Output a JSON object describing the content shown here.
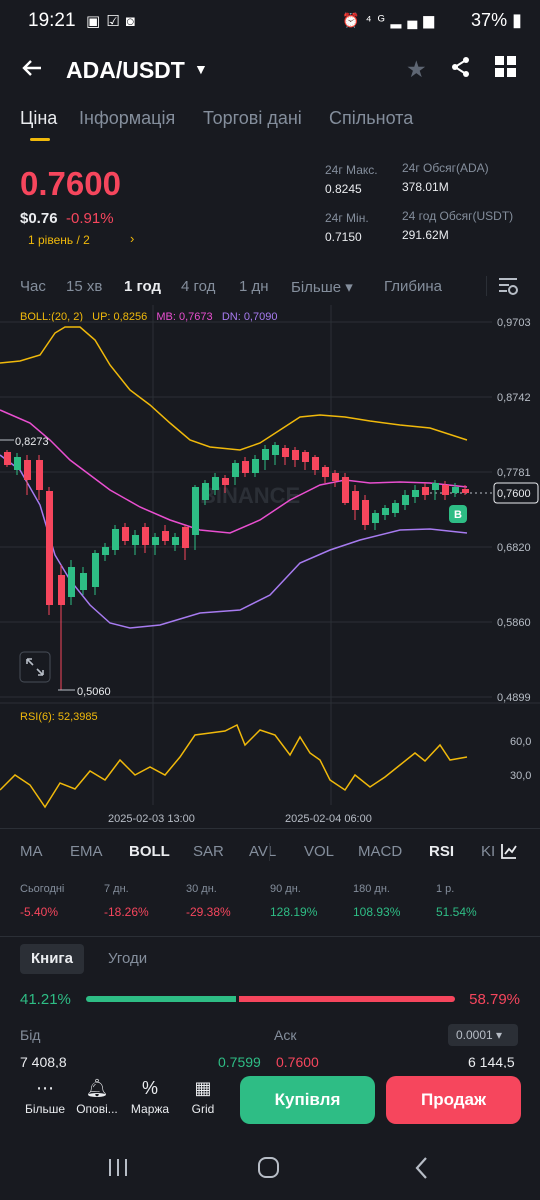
{
  "status_bar": {
    "time": "19:21",
    "left_icons": [
      "image-icon",
      "check-icon",
      "media-icon"
    ],
    "right_icons": [
      "alarm-icon",
      "4g-icon",
      "signal-icon",
      "signal-icon"
    ],
    "battery": "37%"
  },
  "header": {
    "pair": "ADA/USDT",
    "caret": "▼",
    "icons": [
      "back-arrow-icon",
      "star-icon",
      "share-icon",
      "grid-icon"
    ]
  },
  "tabs": [
    "Ціна",
    "Інформація",
    "Торгові дані",
    "Спільнота"
  ],
  "active_tab": "Ціна",
  "price": {
    "last": "0.7600",
    "usd": "$0.76",
    "change": "-0.91%",
    "level": "1 рівень / 2",
    "level_arrow": "›"
  },
  "stats": {
    "high_label": "24г Макс.",
    "high": "0.8245",
    "low_label": "24г Мін.",
    "low": "0.7150",
    "vol_base_label": "24г Обсяг(ADA)",
    "vol_base": "378.01M",
    "vol_quote_label": "24 год Обсяг(USDT)",
    "vol_quote": "291.62M"
  },
  "intervals": [
    "Час",
    "15 хв",
    "1 год",
    "4 год",
    "1 дн",
    "Більше ▾",
    "Глибина"
  ],
  "active_interval": "1 год",
  "boll": {
    "label": "BOLL:(20, 2)",
    "up": "UP: 0,8256",
    "mb": "MB: 0,7673",
    "dn": "DN: 0,7090"
  },
  "chart_data": {
    "type": "candlestick",
    "y_axis_ticks": [
      "0,9703",
      "0,8742",
      "0,7781",
      "0,6820",
      "0,5860",
      "0,4899"
    ],
    "marker_high": "0,8273",
    "marker_low": "0,5060",
    "current_price_tag": "0,7600",
    "watermark": "BINANCE",
    "trade_marker": "B",
    "x_axis_labels": [
      "2025-02-03 13:00",
      "2025-02-04 06:00"
    ],
    "rsi_label": "RSI(6): 52,3985",
    "rsi_ticks": [
      "60,0",
      "30,0"
    ]
  },
  "indicators": [
    "MA",
    "EMA",
    "BOLL",
    "SAR",
    "AVL",
    "VOL",
    "MACD",
    "RSI",
    "KI"
  ],
  "active_indicators": [
    "BOLL",
    "RSI"
  ],
  "performance": [
    {
      "label": "Сьогодні",
      "value": "-5.40%",
      "dir": "down"
    },
    {
      "label": "7 дн.",
      "value": "-18.26%",
      "dir": "down"
    },
    {
      "label": "30 дн.",
      "value": "-29.38%",
      "dir": "down"
    },
    {
      "label": "90 дн.",
      "value": "128.19%",
      "dir": "up"
    },
    {
      "label": "180 дн.",
      "value": "108.93%",
      "dir": "up"
    },
    {
      "label": "1 р.",
      "value": "51.54%",
      "dir": "up"
    }
  ],
  "book": {
    "book_tab": "Книга",
    "trades_tab": "Угоди",
    "bid_pct": "41.21%",
    "ask_pct": "58.79%",
    "bid_label": "Бід",
    "ask_label": "Аск",
    "precision": "0.0001 ▾",
    "row": {
      "bid_qty": "7 408,8",
      "bid_price": "0.7599",
      "ask_price": "0.7600",
      "ask_qty": "6 144,5"
    }
  },
  "bottom": {
    "items": [
      {
        "label": "Більше",
        "icon": "more-icon"
      },
      {
        "label": "Опові...",
        "icon": "bell-icon"
      },
      {
        "label": "Маржа",
        "icon": "percent-icon"
      },
      {
        "label": "Grid",
        "icon": "grid-bot-icon"
      }
    ],
    "buy": "Купівля",
    "sell": "Продаж"
  },
  "colors": {
    "up": "#2ebd85",
    "down": "#f6465d",
    "accent": "#f0b90b",
    "bg": "#181a20"
  }
}
